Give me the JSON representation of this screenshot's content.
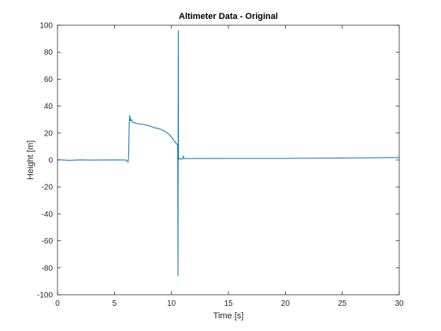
{
  "chart_data": {
    "type": "line",
    "title": "Altimeter Data - Original",
    "xlabel": "Time [s]",
    "ylabel": "Height [m]",
    "xlim": [
      0,
      30
    ],
    "ylim": [
      -100,
      100
    ],
    "xticks": [
      0,
      5,
      10,
      15,
      20,
      25,
      30
    ],
    "yticks": [
      -100,
      -80,
      -60,
      -40,
      -20,
      0,
      20,
      40,
      60,
      80,
      100
    ],
    "grid": false,
    "line_color": "#0072BD",
    "series": [
      {
        "x": [
          0,
          1,
          2,
          3,
          4,
          5,
          6,
          6.2,
          6.25,
          6.3,
          6.35,
          6.4,
          6.5,
          6.6,
          6.8,
          7,
          7.5,
          8,
          8.5,
          9,
          9.5,
          9.8,
          10,
          10.2,
          10.4,
          10.55,
          10.58,
          10.6,
          10.62,
          10.64,
          10.66,
          10.7,
          10.9,
          11,
          11.05,
          11.1,
          12,
          15,
          20,
          25,
          30
        ],
        "y": [
          0.2,
          -0.2,
          0.1,
          -0.1,
          0,
          0.1,
          0,
          -1.5,
          3,
          28,
          33,
          29,
          30,
          28,
          27.5,
          27,
          26.5,
          25.5,
          24,
          23,
          21,
          19,
          17,
          14.5,
          12.5,
          11,
          -86,
          96,
          2,
          0.5,
          1,
          1,
          0.5,
          1,
          3,
          1,
          1.1,
          1.2,
          1.2,
          1.5,
          1.8
        ]
      }
    ]
  }
}
